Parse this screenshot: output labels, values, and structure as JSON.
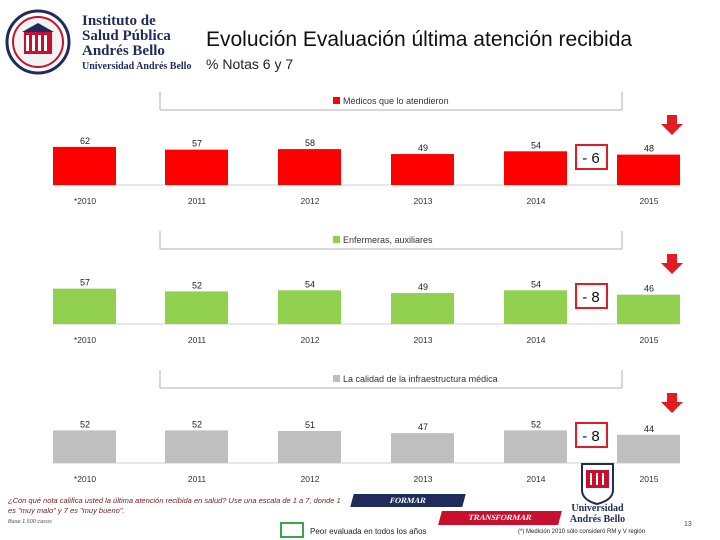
{
  "header": {
    "logo_line1": "Instituto de",
    "logo_line2": "Salud Pública",
    "logo_line3": "Andrés Bello",
    "logo_sub": "Universidad Andrés Bello",
    "title": "Evolución Evaluación última atención recibida",
    "subtitle": "% Notas 6 y 7"
  },
  "chart_data": [
    {
      "type": "bar",
      "categories": [
        "*2010",
        "2011",
        "2012",
        "2013",
        "2014",
        "2015"
      ],
      "series": [
        {
          "name": "Médicos que lo atendieron",
          "values": [
            62,
            57,
            58,
            49,
            54,
            48
          ]
        }
      ],
      "color": "#ff0000",
      "change_label": "- 6"
    },
    {
      "type": "bar",
      "categories": [
        "*2010",
        "2011",
        "2012",
        "2013",
        "2014",
        "2015"
      ],
      "series": [
        {
          "name": "Enfermeras, auxiliares",
          "values": [
            57,
            52,
            54,
            49,
            54,
            46
          ]
        }
      ],
      "color": "#92d050",
      "change_label": "- 8"
    },
    {
      "type": "bar",
      "categories": [
        "*2010",
        "2011",
        "2012",
        "2013",
        "2014",
        "2015"
      ],
      "series": [
        {
          "name": "La calidad de la infraestructura médica",
          "values": [
            52,
            52,
            51,
            47,
            52,
            44
          ]
        }
      ],
      "color": "#bfbfbf",
      "change_label": "- 8"
    }
  ],
  "footer": {
    "question": "¿Con qué nota califica usted la última atención recibida en salud? Use una escala de 1 a 7, donde 1 es \"muy malo\" y 7 es \"muy bueno\".",
    "base": "Base 1.500 casos",
    "legend_label": "Peor evaluada en todos los años",
    "footnote": "(*) Medición 2010 sólo consideró RM y V región",
    "page_number": "13",
    "banner_formar": "FORMAR",
    "banner_transformar": "TRANSFORMAR",
    "uni_name_1": "Universidad",
    "uni_name_2": "Andrés Bello"
  },
  "colors": {
    "accent_red": "#e31b23",
    "navy": "#1f2b5a"
  }
}
